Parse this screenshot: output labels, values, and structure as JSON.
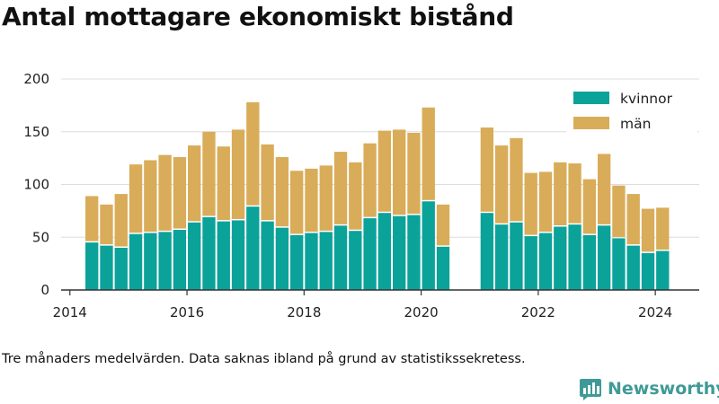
{
  "title": "Antal mottagare ekonomiskt bistånd",
  "caption": "Tre månaders medelvärden. Data saknas ibland på grund av statistikssekretess.",
  "brand": "Newsworthy",
  "colors": {
    "kvinnor": "#0ba29a",
    "man": "#d9ac59",
    "grid": "#dddddd",
    "axis": "#333333",
    "brand": "#3f9a97"
  },
  "chart_data": {
    "type": "bar",
    "stacked": true,
    "grid": true,
    "legend_position": "top-right",
    "ylim": [
      0,
      200
    ],
    "yticks": [
      0,
      50,
      100,
      150,
      200
    ],
    "xlim": [
      2013.85,
      2024.75
    ],
    "xticks": [
      2014,
      2016,
      2018,
      2020,
      2022,
      2024
    ],
    "x": [
      2014.375,
      2014.625,
      2014.875,
      2015.125,
      2015.375,
      2015.625,
      2015.875,
      2016.125,
      2016.375,
      2016.625,
      2016.875,
      2017.125,
      2017.375,
      2017.625,
      2017.875,
      2018.125,
      2018.375,
      2018.625,
      2018.875,
      2019.125,
      2019.375,
      2019.625,
      2019.875,
      2020.125,
      2020.375,
      2021.125,
      2021.375,
      2021.625,
      2021.875,
      2022.125,
      2022.375,
      2022.625,
      2022.875,
      2023.125,
      2023.375,
      2023.625,
      2023.875,
      2024.125
    ],
    "series": [
      {
        "name": "kvinnor",
        "values": [
          45,
          42,
          40,
          53,
          54,
          55,
          57,
          64,
          69,
          65,
          66,
          79,
          65,
          59,
          52,
          54,
          55,
          61,
          56,
          68,
          73,
          70,
          71,
          84,
          41,
          73,
          62,
          64,
          51,
          54,
          60,
          62,
          52,
          61,
          49,
          42,
          35,
          37
        ]
      },
      {
        "name": "män",
        "values": [
          44,
          39,
          51,
          66,
          69,
          73,
          69,
          73,
          81,
          71,
          86,
          99,
          73,
          67,
          61,
          61,
          63,
          70,
          65,
          71,
          78,
          82,
          78,
          89,
          40,
          81,
          75,
          80,
          60,
          58,
          61,
          58,
          53,
          68,
          50,
          49,
          42,
          41
        ]
      }
    ]
  }
}
